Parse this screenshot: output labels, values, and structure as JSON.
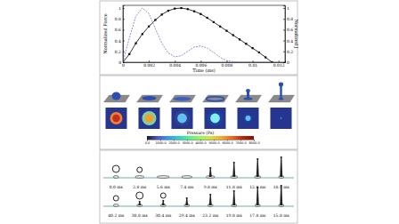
{
  "chart_data": {
    "type": "line",
    "xlabel": "Time (ms)",
    "ylabel": "Normalized Force",
    "y2label": "Normalized J",
    "xlim": [
      0,
      0.0125
    ],
    "xticks": [
      0,
      0.002,
      0.004,
      0.006,
      0.008,
      0.01,
      0.012
    ],
    "ylim": [
      0,
      1.05
    ],
    "yticks": [
      0,
      0.2,
      0.4,
      0.6,
      0.8,
      1
    ],
    "y2lim": [
      0,
      1.05
    ],
    "y2ticks": [
      0,
      0.2,
      0.4,
      0.6,
      0.8,
      1
    ],
    "x": [
      0,
      0.0005,
      0.001,
      0.0015,
      0.002,
      0.0025,
      0.003,
      0.0035,
      0.004,
      0.0045,
      0.005,
      0.0055,
      0.006,
      0.0065,
      0.007,
      0.0075,
      0.008,
      0.0085,
      0.009,
      0.0095,
      0.01,
      0.0105,
      0.011,
      0.0115
    ],
    "series": [
      {
        "color": "#000000",
        "marker": "square",
        "line_style": "solid",
        "values": [
          0,
          0.15,
          0.35,
          0.52,
          0.66,
          0.78,
          0.88,
          0.95,
          0.99,
          1.0,
          0.98,
          0.94,
          0.89,
          0.82,
          0.74,
          0.66,
          0.58,
          0.5,
          0.42,
          0.34,
          0.26,
          0.18,
          0.09,
          0
        ]
      },
      {
        "color": "#7070e0",
        "marker": "none",
        "line_style": "dashed",
        "axis": "y2",
        "values": [
          0,
          0.45,
          0.85,
          1.0,
          0.9,
          0.62,
          0.35,
          0.17,
          0.1,
          0.12,
          0.2,
          0.28,
          0.3,
          0.26,
          0.18,
          0.09,
          0.03,
          0.01,
          0,
          0,
          0,
          0,
          0,
          0
        ]
      }
    ]
  },
  "renders": {
    "colorbar": {
      "label": "Pressure (Pa)",
      "range": [
        0,
        8000
      ],
      "ticks": [
        {
          "value": 0,
          "label": "0.0"
        },
        {
          "value": 1000,
          "label": "1000.0"
        },
        {
          "value": 2000,
          "label": "2000.0"
        },
        {
          "value": 3000,
          "label": "3000.0"
        },
        {
          "value": 4000,
          "label": "4000.0"
        },
        {
          "value": 5000,
          "label": "5000.0"
        },
        {
          "value": 6000,
          "label": "6000.0"
        },
        {
          "value": 7000,
          "label": "7000.0"
        },
        {
          "value": 8000,
          "label": "8000.0"
        }
      ]
    }
  },
  "photos": {
    "rows": [
      [
        "0.0 ms",
        "2.8 ms",
        "5.6 ms",
        "7.4 ms",
        "9.8 ms",
        "11.8 ms",
        "12.8 ms",
        "18.4 ms"
      ],
      [
        "40.2 ms",
        "30.8 ms",
        "30.4 ms",
        "29.4 ms",
        "23.2 ms",
        "19.8 ms",
        "17.8 ms",
        "15.8 ms"
      ]
    ]
  }
}
